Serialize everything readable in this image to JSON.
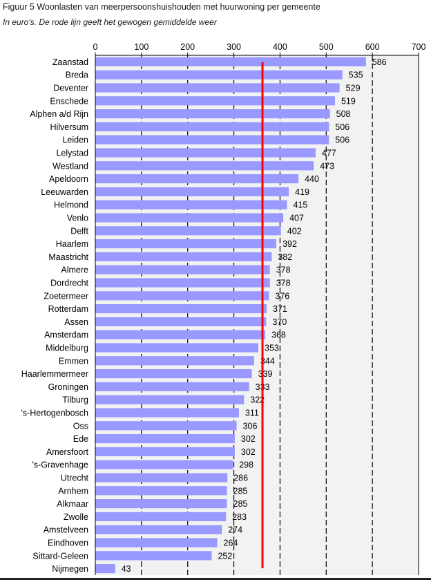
{
  "title": "Figuur 5 Woonlasten van meerpersoonshuishouden met huurwoning per gemeente",
  "subtitle": "In euro's. De rode lijn geeft het gewogen gemiddelde weer",
  "colors": {
    "bar": "#9999ff",
    "reference_line": "#ff0000",
    "plot_background": "#f2f2f2",
    "grid": "#000000"
  },
  "chart_data": {
    "type": "bar",
    "orientation": "horizontal",
    "title": "Woonlasten van meerpersoonshuishouden met huurwoning per gemeente",
    "xlabel": "",
    "ylabel": "",
    "xlim": [
      0,
      700
    ],
    "ticks": [
      0,
      100,
      200,
      300,
      400,
      500,
      600,
      700
    ],
    "tick_labels": [
      "0",
      "100",
      "200",
      "300",
      "400",
      "500",
      "600",
      "700"
    ],
    "weighted_average": 362,
    "categories": [
      "Zaanstad",
      "Breda",
      "Deventer",
      "Enschede",
      "Alphen a/d Rijn",
      "Hilversum",
      "Leiden",
      "Lelystad",
      "Westland",
      "Apeldoorn",
      "Leeuwarden",
      "Helmond",
      "Venlo",
      "Delft",
      "Haarlem",
      "Maastricht",
      "Almere",
      "Dordrecht",
      "Zoetermeer",
      "Rotterdam",
      "Assen",
      "Amsterdam",
      "Middelburg",
      "Emmen",
      "Haarlemmermeer",
      "Groningen",
      "Tilburg",
      "'s-Hertogenbosch",
      "Oss",
      "Ede",
      "Amersfoort",
      "'s-Gravenhage",
      "Utrecht",
      "Arnhem",
      "Alkmaar",
      "Zwolle",
      "Amstelveen",
      "Eindhoven",
      "Sittard-Geleen",
      "Nijmegen"
    ],
    "values": [
      586,
      535,
      529,
      519,
      508,
      506,
      506,
      477,
      473,
      440,
      419,
      415,
      407,
      402,
      392,
      382,
      378,
      378,
      376,
      371,
      370,
      368,
      353,
      344,
      339,
      333,
      322,
      311,
      306,
      302,
      302,
      298,
      286,
      285,
      285,
      283,
      274,
      264,
      252,
      43
    ]
  }
}
